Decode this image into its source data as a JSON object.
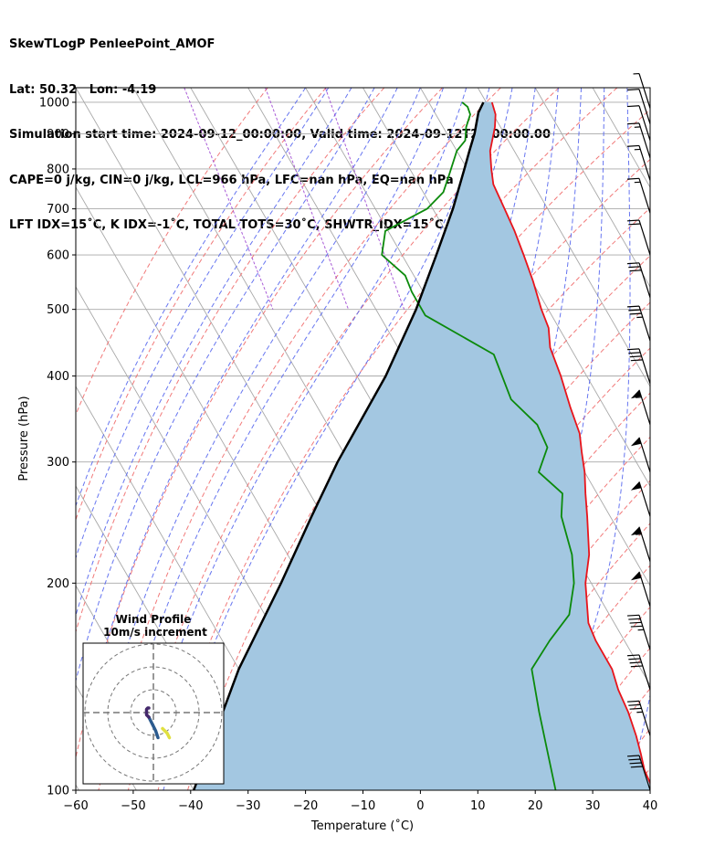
{
  "header": {
    "line1": "SkewTLogP PenleePoint_AMOF",
    "line2": "Lat: 50.32   Lon: -4.19",
    "line3": "Simulation start time: 2024-09-12_00:00:00, Valid time: 2024-09-12T21:00:00.00",
    "line4": "CAPE=0 j/kg, CIN=0 j/kg, LCL=966 hPa, LFC=nan hPa, EQ=nan hPa",
    "line5": "LFT IDX=15˚C, K IDX=-1˚C, TOTAL TOTS=30˚C, SHWTR_IDX=15˚C"
  },
  "chart_data": {
    "type": "line",
    "subtype": "skew-T log-P diagram",
    "xlabel": "Temperature (˚C)",
    "ylabel": "Pressure (hPa)",
    "xlim": [
      -60,
      40
    ],
    "ylim": [
      1050,
      100
    ],
    "yscale": "log",
    "x_ticks": [
      -60,
      -50,
      -40,
      -30,
      -20,
      -10,
      0,
      10,
      20,
      30,
      40
    ],
    "y_ticks": [
      100,
      200,
      300,
      400,
      500,
      600,
      700,
      800,
      900,
      1000
    ],
    "grid": true,
    "colors": {
      "temperature": "#e8141b",
      "dewpoint": "#0b8a0b",
      "parcel": "#000000",
      "cin_shading": "#a3c7e1",
      "isotherms": "#a8a8a8",
      "dry_adiabats": "#f06a6a",
      "moist_adiabats": "#5566ee",
      "mixing_ratio": "#9a3fd0"
    },
    "series": [
      {
        "key": "temperature",
        "points": [
          [
            1000,
            11
          ],
          [
            960,
            10.4
          ],
          [
            920,
            9
          ],
          [
            850,
            5.8
          ],
          [
            800,
            4.2
          ],
          [
            760,
            3
          ],
          [
            700,
            2.5
          ],
          [
            650,
            2
          ],
          [
            600,
            1.2
          ],
          [
            550,
            0.2
          ],
          [
            500,
            -1.2
          ],
          [
            470,
            -1.8
          ],
          [
            440,
            -3.5
          ],
          [
            400,
            -4.5
          ],
          [
            360,
            -6
          ],
          [
            330,
            -7
          ],
          [
            310,
            -8.5
          ],
          [
            290,
            -10
          ],
          [
            270,
            -12
          ],
          [
            250,
            -14
          ],
          [
            220,
            -17.5
          ],
          [
            200,
            -21
          ],
          [
            175,
            -24.5
          ],
          [
            165,
            -25
          ],
          [
            150,
            -25
          ],
          [
            140,
            -26
          ],
          [
            130,
            -26.5
          ],
          [
            120,
            -27.5
          ],
          [
            113,
            -28.5
          ],
          [
            107,
            -29.5
          ],
          [
            100,
            -30
          ]
        ]
      },
      {
        "key": "dewpoint",
        "points": [
          [
            1000,
            5.8
          ],
          [
            985,
            6.3
          ],
          [
            960,
            6
          ],
          [
            920,
            4
          ],
          [
            880,
            2.5
          ],
          [
            850,
            0
          ],
          [
            780,
            -4
          ],
          [
            740,
            -6.5
          ],
          [
            700,
            -11
          ],
          [
            650,
            -20.5
          ],
          [
            600,
            -23.5
          ],
          [
            560,
            -21.5
          ],
          [
            530,
            -22
          ],
          [
            490,
            -22
          ],
          [
            430,
            -14
          ],
          [
            370,
            -15.5
          ],
          [
            340,
            -13.5
          ],
          [
            315,
            -14
          ],
          [
            290,
            -18
          ],
          [
            270,
            -16
          ],
          [
            250,
            -18.5
          ],
          [
            220,
            -20.5
          ],
          [
            200,
            -23
          ],
          [
            180,
            -27
          ],
          [
            165,
            -33
          ],
          [
            150,
            -39
          ],
          [
            130,
            -42
          ],
          [
            100,
            -47
          ]
        ]
      },
      {
        "key": "parcel",
        "points": [
          [
            1000,
            9.5
          ],
          [
            966,
            7.6
          ],
          [
            900,
            4.8
          ],
          [
            850,
            2.2
          ],
          [
            800,
            -0.5
          ],
          [
            700,
            -6.5
          ],
          [
            600,
            -14
          ],
          [
            500,
            -23
          ],
          [
            400,
            -35
          ],
          [
            300,
            -52
          ],
          [
            250,
            -62
          ],
          [
            200,
            -74
          ],
          [
            150,
            -90
          ],
          [
            100,
            -110
          ]
        ]
      }
    ],
    "wind_barbs_note": "Wind barbs along right edge at pressure levels; speeds in knots",
    "wind_barbs": [
      {
        "p": 100,
        "spd": 40
      },
      {
        "p": 120,
        "spd": 35
      },
      {
        "p": 140,
        "spd": 40
      },
      {
        "p": 160,
        "spd": 45
      },
      {
        "p": 185,
        "spd": 50
      },
      {
        "p": 215,
        "spd": 55
      },
      {
        "p": 250,
        "spd": 50
      },
      {
        "p": 290,
        "spd": 50
      },
      {
        "p": 340,
        "spd": 55
      },
      {
        "p": 390,
        "spd": 40
      },
      {
        "p": 450,
        "spd": 35
      },
      {
        "p": 520,
        "spd": 30
      },
      {
        "p": 600,
        "spd": 20
      },
      {
        "p": 690,
        "spd": 15
      },
      {
        "p": 770,
        "spd": 15
      },
      {
        "p": 830,
        "spd": 15
      },
      {
        "p": 880,
        "spd": 10
      },
      {
        "p": 930,
        "spd": 10
      },
      {
        "p": 980,
        "spd": 5
      }
    ],
    "hodograph": {
      "title_line1": "Wind Profile",
      "title_line2": "10m/s increment",
      "segments": [
        {
          "color": "#e0e040",
          "points": [
            [
              7,
              -11
            ],
            [
              6,
              -9
            ],
            [
              4,
              -7
            ]
          ]
        },
        {
          "color": "#2c5b8f",
          "points": [
            [
              2,
              -11
            ],
            [
              1,
              -8
            ],
            [
              0,
              -6
            ],
            [
              -1,
              -4
            ],
            [
              -2,
              -2
            ]
          ]
        },
        {
          "color": "#44286b",
          "points": [
            [
              -2,
              -2
            ],
            [
              -3,
              -1
            ],
            [
              -3,
              1.5
            ],
            [
              -2.5,
              2
            ],
            [
              -2,
              2
            ]
          ]
        }
      ]
    }
  }
}
